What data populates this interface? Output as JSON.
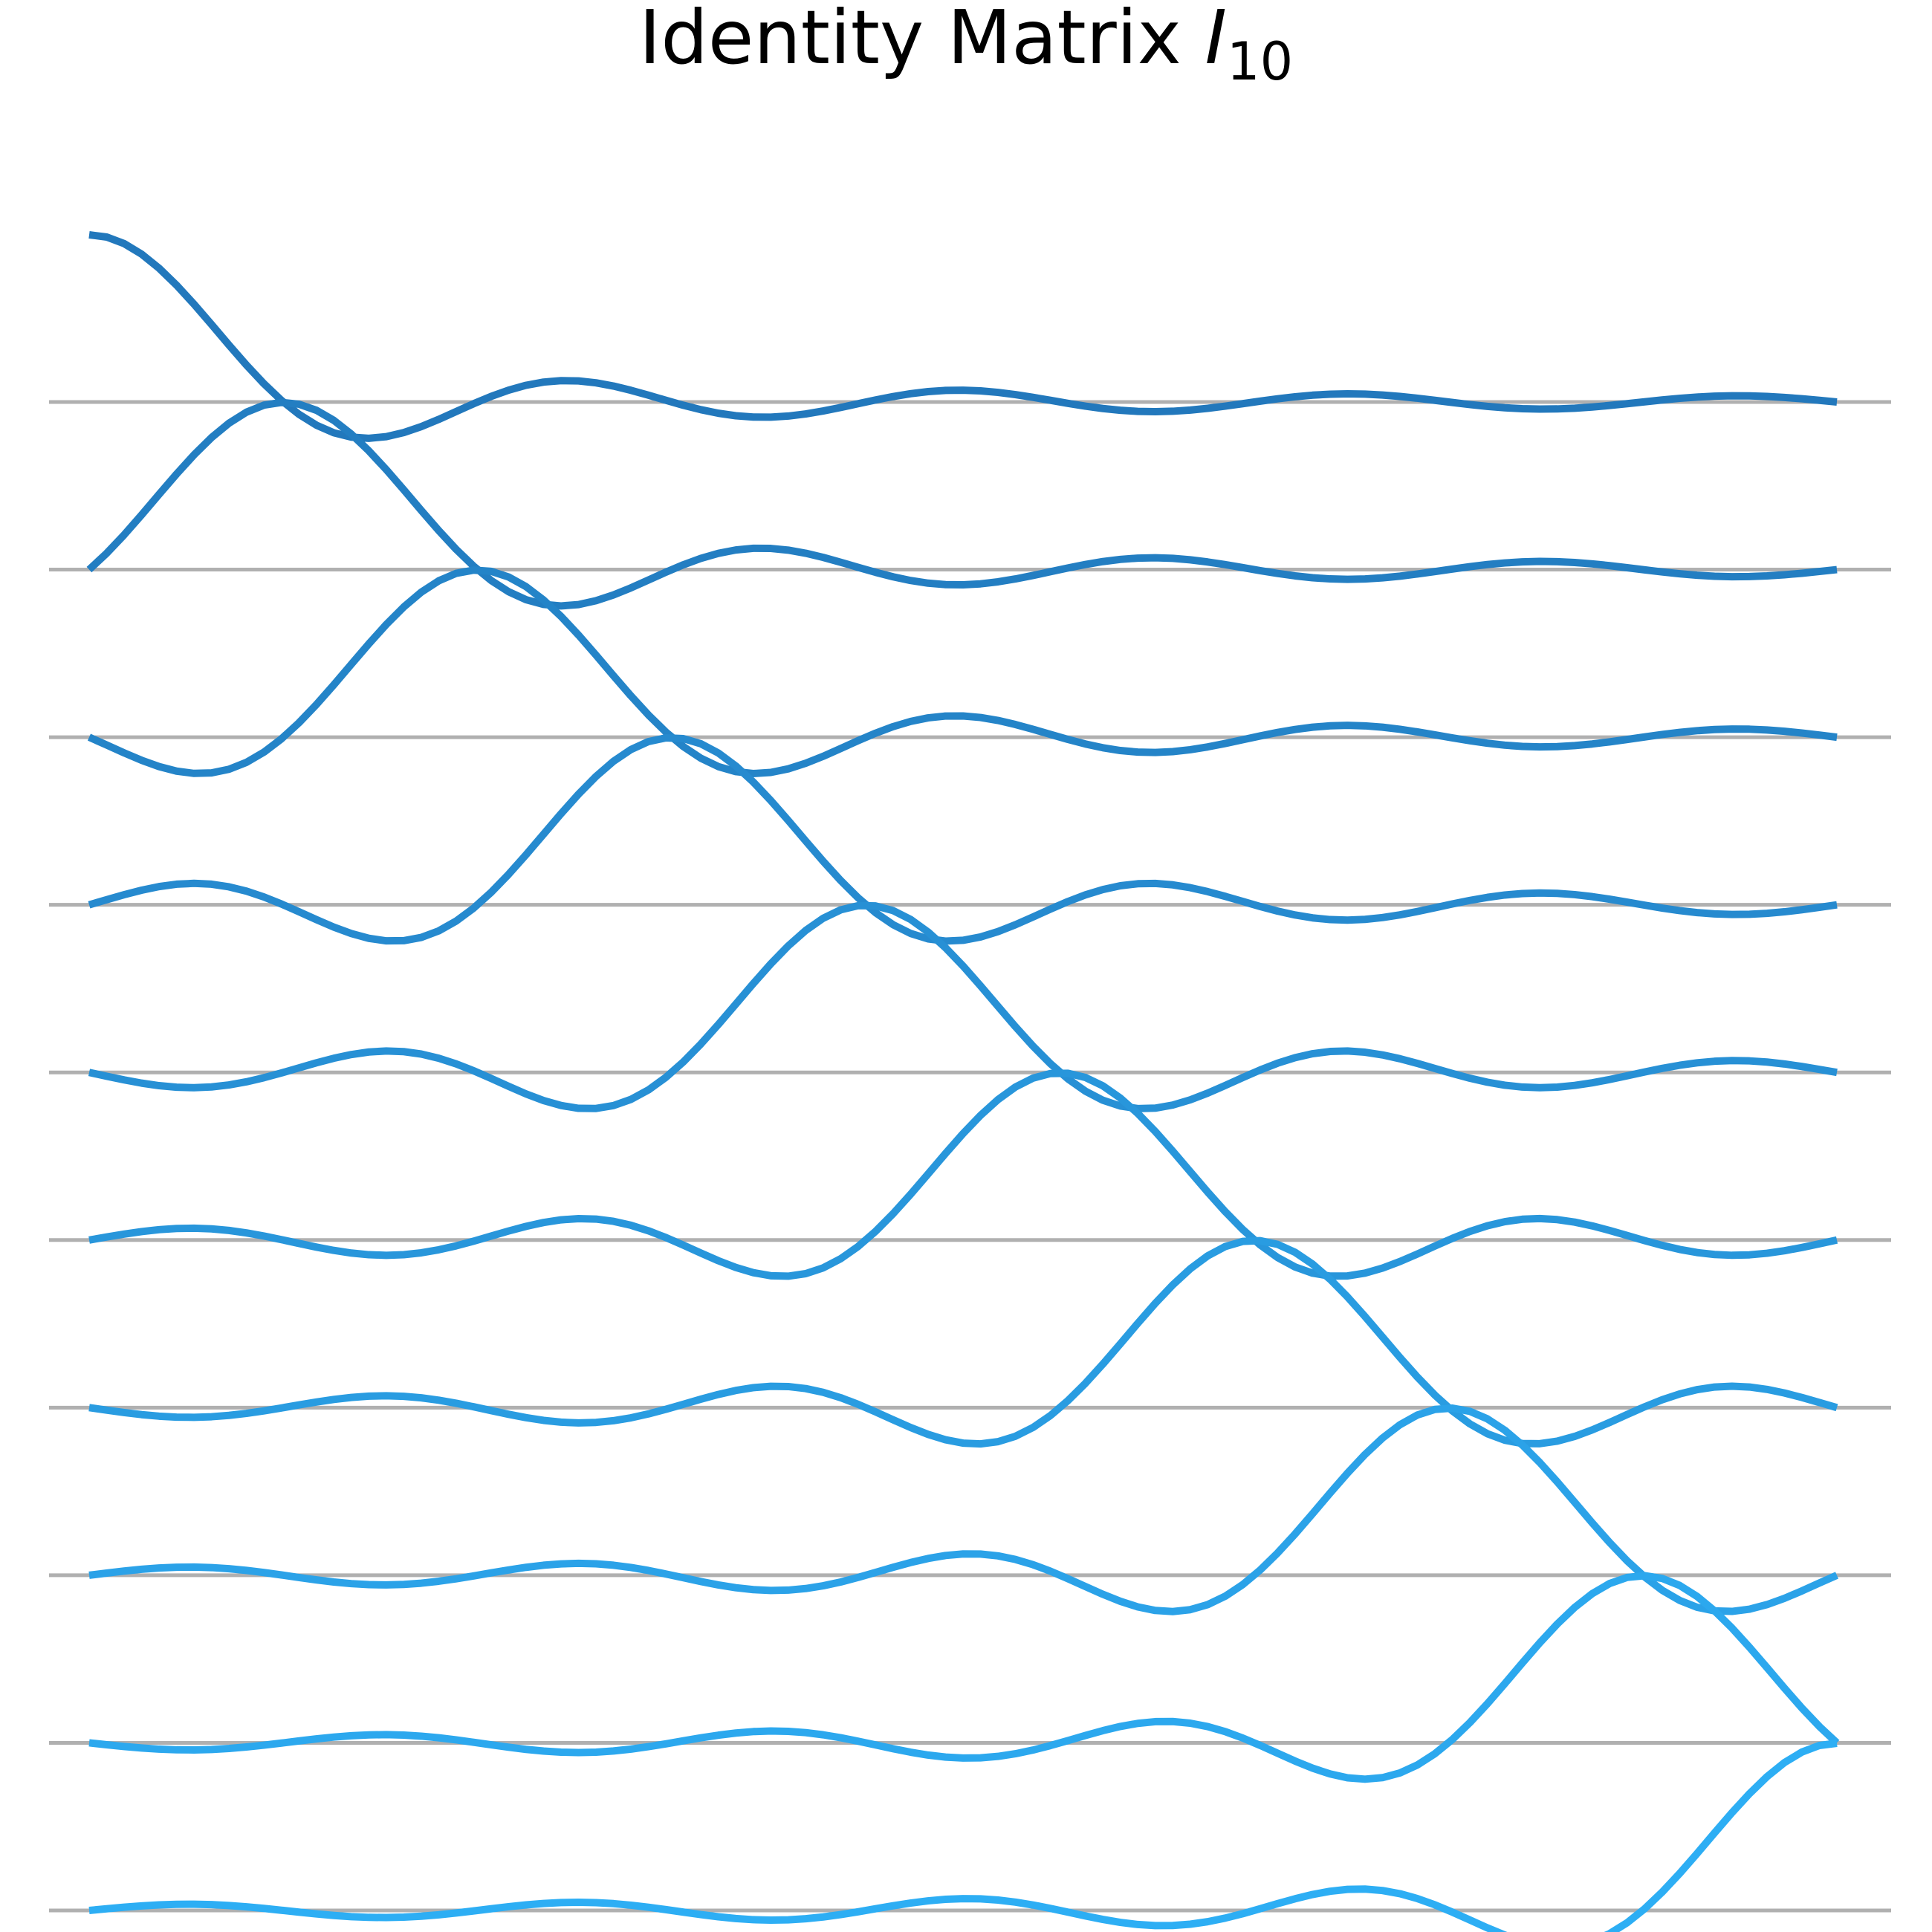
{
  "chart_data": {
    "type": "line",
    "title": "Identity Matrix ",
    "title_italic": "I",
    "title_subscript": "10",
    "n": 10,
    "x_range": [
      0,
      9
    ],
    "x_label": "",
    "y_label": "",
    "grid": false,
    "axes_visible": false,
    "legend": "none",
    "interpolation": "sinc",
    "series": [
      {
        "values": [
          1,
          0,
          0,
          0,
          0,
          0,
          0,
          0,
          0,
          0
        ]
      },
      {
        "values": [
          0,
          1,
          0,
          0,
          0,
          0,
          0,
          0,
          0,
          0
        ]
      },
      {
        "values": [
          0,
          0,
          1,
          0,
          0,
          0,
          0,
          0,
          0,
          0
        ]
      },
      {
        "values": [
          0,
          0,
          0,
          1,
          0,
          0,
          0,
          0,
          0,
          0
        ]
      },
      {
        "values": [
          0,
          0,
          0,
          0,
          1,
          0,
          0,
          0,
          0,
          0
        ]
      },
      {
        "values": [
          0,
          0,
          0,
          0,
          0,
          1,
          0,
          0,
          0,
          0
        ]
      },
      {
        "values": [
          0,
          0,
          0,
          0,
          0,
          0,
          1,
          0,
          0,
          0
        ]
      },
      {
        "values": [
          0,
          0,
          0,
          0,
          0,
          0,
          0,
          1,
          0,
          0
        ]
      },
      {
        "values": [
          0,
          0,
          0,
          0,
          0,
          0,
          0,
          0,
          1,
          0
        ]
      },
      {
        "values": [
          0,
          0,
          0,
          0,
          0,
          0,
          0,
          0,
          0,
          1
        ]
      }
    ]
  },
  "colors": {
    "baseline": "#b0b0b0",
    "series_first": "#2278bc",
    "series_last": "#2daef4"
  }
}
